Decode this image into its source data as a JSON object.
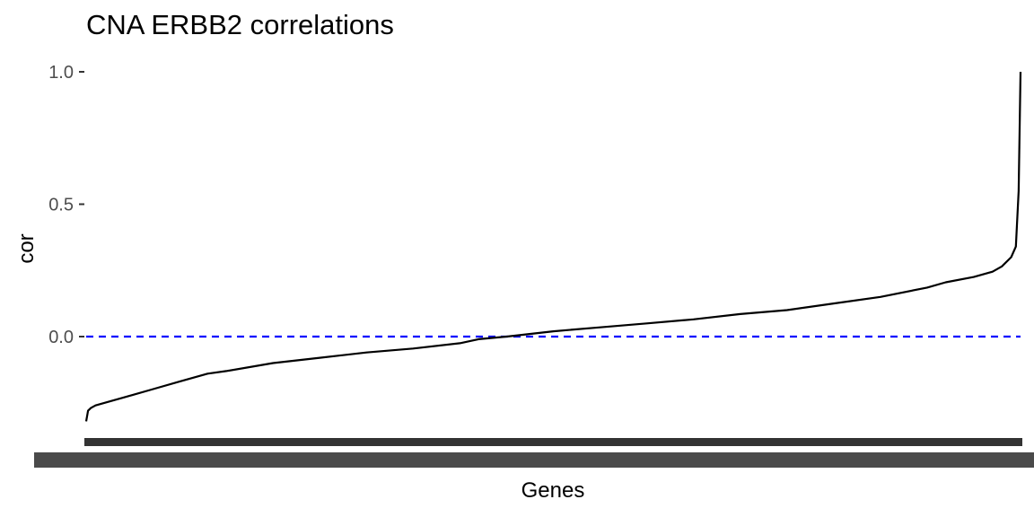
{
  "chart_data": {
    "type": "line",
    "title": "CNA ERBB2 correlations",
    "xlabel": "Genes",
    "ylabel": "cor",
    "ylim": [
      -0.33,
      1.0
    ],
    "yticks": [
      0.0,
      0.5,
      1.0
    ],
    "ytick_labels": [
      "0.0",
      "0.5",
      "1.0"
    ],
    "x_tick_labels_note": "",
    "grid": false,
    "legend": "none",
    "reference_line": {
      "y": 0.0,
      "style": "dashed",
      "color": "#0000ff"
    },
    "series": [
      {
        "color": "#000000",
        "x": [
          0,
          0.002,
          0.005,
          0.01,
          0.03,
          0.05,
          0.07,
          0.1,
          0.13,
          0.15,
          0.2,
          0.25,
          0.3,
          0.35,
          0.4,
          0.42,
          0.45,
          0.5,
          0.55,
          0.6,
          0.65,
          0.7,
          0.75,
          0.8,
          0.85,
          0.9,
          0.92,
          0.95,
          0.97,
          0.98,
          0.99,
          0.995,
          0.998,
          1.0
        ],
        "y": [
          -0.32,
          -0.28,
          -0.27,
          -0.26,
          -0.24,
          -0.22,
          -0.2,
          -0.17,
          -0.14,
          -0.13,
          -0.1,
          -0.08,
          -0.06,
          -0.045,
          -0.025,
          -0.01,
          0.0,
          0.02,
          0.035,
          0.05,
          0.065,
          0.085,
          0.1,
          0.125,
          0.15,
          0.185,
          0.205,
          0.225,
          0.245,
          0.265,
          0.3,
          0.34,
          0.55,
          1.0
        ]
      }
    ]
  }
}
